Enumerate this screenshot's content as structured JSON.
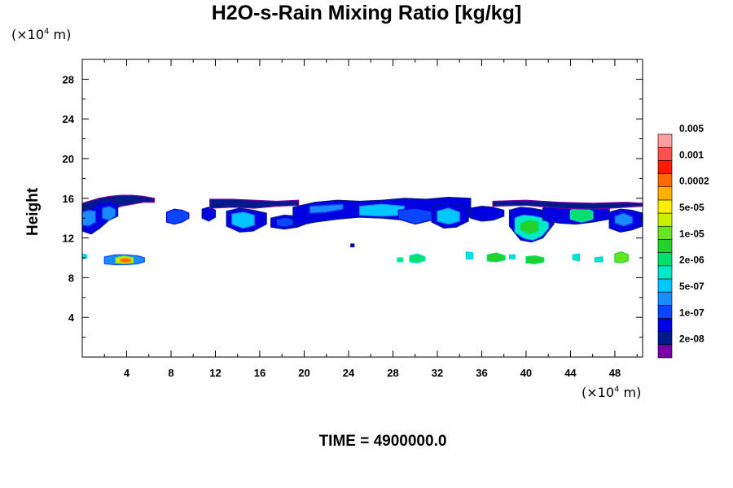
{
  "chart_data": {
    "type": "heatmap",
    "title": "H2O-s-Rain Mixing Ratio [kg/kg]",
    "ylabel": "Height",
    "xlabel": "",
    "x_unit": "(×10",
    "x_unit_exp": "4",
    "x_unit_tail": " m)",
    "y_unit": "(×10",
    "y_unit_exp": "4",
    "y_unit_tail": " m)",
    "xlim": [
      0,
      50.5
    ],
    "ylim": [
      0,
      30
    ],
    "x_ticks": [
      4,
      8,
      12,
      16,
      20,
      24,
      28,
      32,
      36,
      40,
      44,
      48
    ],
    "y_ticks": [
      4,
      8,
      12,
      16,
      20,
      24,
      28
    ],
    "x_tick_labels": [
      "4",
      "8",
      "12",
      "16",
      "20",
      "24",
      "28",
      "32",
      "36",
      "40",
      "44",
      "48"
    ],
    "y_tick_labels": [
      "4",
      "8",
      "12",
      "16",
      "20",
      "24",
      "28"
    ],
    "colorbar": {
      "colors": [
        "#7a00a8",
        "#001a8c",
        "#0000e0",
        "#0a46ff",
        "#1a8cff",
        "#00c8ff",
        "#00e8c8",
        "#00e070",
        "#22d22a",
        "#66e620",
        "#c8f000",
        "#ffee00",
        "#ffb000",
        "#ff6a00",
        "#ff1a00",
        "#ff5050",
        "#ff9e9e"
      ],
      "labels": [
        "2e-08",
        "1e-07",
        "5e-07",
        "2e-06",
        "1e-05",
        "5e-05",
        "0.0002",
        "0.001",
        "0.005"
      ]
    },
    "regions": [
      {
        "x": [
          0,
          1.5,
          2.5,
          3.5,
          4.5,
          5.5,
          6.5
        ],
        "ymin": [
          13.5,
          14.3,
          14.8,
          15.2,
          15.4,
          15.6,
          15.6
        ],
        "ymax": [
          15.5,
          16.0,
          16.2,
          16.3,
          16.3,
          16.2,
          16.0
        ],
        "level": 1
      },
      {
        "x": [
          0,
          0.8,
          1.6,
          2.4,
          3.2
        ],
        "ymin": [
          12.7,
          12.4,
          13.0,
          13.8,
          14.2
        ],
        "ymax": [
          14.8,
          15.0,
          15.6,
          15.7,
          15.4
        ],
        "level": 2
      },
      {
        "x": [
          0,
          0.6,
          1.2
        ],
        "ymin": [
          13.3,
          13.2,
          13.6
        ],
        "ymax": [
          14.6,
          14.8,
          14.7
        ],
        "level": 4
      },
      {
        "x": [
          1.8,
          2.4,
          3.0
        ],
        "ymin": [
          14.0,
          13.8,
          14.2
        ],
        "ymax": [
          15.0,
          15.2,
          14.9
        ],
        "level": 4
      },
      {
        "x": [
          7.6,
          8.3,
          9.0,
          9.6
        ],
        "ymin": [
          13.6,
          13.4,
          13.6,
          14.0
        ],
        "ymax": [
          14.6,
          14.9,
          14.8,
          14.5
        ],
        "level": 3
      },
      {
        "x": [
          10.8,
          11.4,
          12.0
        ],
        "ymin": [
          14.0,
          13.7,
          14.1
        ],
        "ymax": [
          14.9,
          15.1,
          14.8
        ],
        "level": 2
      },
      {
        "x": [
          11.5,
          13.5,
          15.5,
          17.5,
          19.5
        ],
        "ymin": [
          15.0,
          15.1,
          15.0,
          15.2,
          15.3
        ],
        "ymax": [
          15.9,
          15.9,
          15.8,
          15.7,
          15.8
        ],
        "level": 1
      },
      {
        "x": [
          13.0,
          14.2,
          15.4,
          16.6
        ],
        "ymin": [
          13.2,
          12.6,
          12.7,
          13.4
        ],
        "ymax": [
          14.7,
          15.0,
          14.8,
          14.5
        ],
        "level": 2
      },
      {
        "x": [
          13.5,
          14.5,
          15.5
        ],
        "ymin": [
          13.4,
          13.0,
          13.3
        ],
        "ymax": [
          14.4,
          14.6,
          14.3
        ],
        "level": 5
      },
      {
        "x": [
          17.0,
          18.2,
          19.4,
          20.6
        ],
        "ymin": [
          13.1,
          12.9,
          13.1,
          13.6
        ],
        "ymax": [
          14.0,
          14.3,
          14.2,
          14.0
        ],
        "level": 2
      },
      {
        "x": [
          17.5,
          18.3,
          19.1
        ],
        "ymin": [
          13.2,
          13.1,
          13.3
        ],
        "ymax": [
          13.9,
          14.1,
          13.9
        ],
        "level": 3
      },
      {
        "x": [
          19.0,
          21.0,
          23.0,
          25.0,
          27.0,
          29.0,
          31.0,
          33.0,
          35.0
        ],
        "ymin": [
          13.2,
          13.6,
          13.9,
          14.1,
          14.0,
          13.8,
          13.9,
          14.0,
          14.1
        ],
        "ymax": [
          15.1,
          15.6,
          15.8,
          15.7,
          15.8,
          16.0,
          15.9,
          16.1,
          16.0
        ],
        "level": 2
      },
      {
        "x": [
          20.5,
          22.0,
          23.5
        ],
        "ymin": [
          14.5,
          14.6,
          14.9
        ],
        "ymax": [
          15.2,
          15.3,
          15.4
        ],
        "level": 4
      },
      {
        "x": [
          25.0,
          27.0,
          29.0
        ],
        "ymin": [
          14.3,
          14.2,
          14.3
        ],
        "ymax": [
          15.2,
          15.4,
          15.2
        ],
        "level": 5
      },
      {
        "x": [
          28.5,
          30.0,
          31.5
        ],
        "ymin": [
          13.9,
          13.4,
          13.8
        ],
        "ymax": [
          14.8,
          15.0,
          14.7
        ],
        "level": 3
      },
      {
        "x": [
          31.5,
          32.6,
          33.7,
          34.8
        ],
        "ymin": [
          13.6,
          13.0,
          13.1,
          13.7
        ],
        "ymax": [
          15.1,
          15.5,
          15.4,
          14.9
        ],
        "level": 2
      },
      {
        "x": [
          32.0,
          33.0,
          34.0
        ],
        "ymin": [
          13.7,
          13.4,
          13.7
        ],
        "ymax": [
          14.7,
          15.0,
          14.6
        ],
        "level": 5
      },
      {
        "x": [
          35.0,
          36.0,
          37.0,
          38.0
        ],
        "ymin": [
          14.0,
          13.7,
          13.8,
          14.2
        ],
        "ymax": [
          15.0,
          15.2,
          15.1,
          14.8
        ],
        "level": 2
      },
      {
        "x": [
          38.5,
          39.5,
          40.5,
          41.5,
          42.5
        ],
        "ymin": [
          13.2,
          11.8,
          11.6,
          12.0,
          13.4
        ],
        "ymax": [
          14.8,
          15.1,
          15.0,
          14.8,
          14.5
        ],
        "level": 2
      },
      {
        "x": [
          39.0,
          39.8,
          40.6,
          41.4,
          42.0
        ],
        "ymin": [
          12.6,
          12.0,
          11.8,
          12.2,
          13.0
        ],
        "ymax": [
          14.0,
          14.3,
          14.2,
          14.0,
          13.5
        ],
        "level": 6
      },
      {
        "x": [
          39.5,
          40.3,
          41.1
        ],
        "ymin": [
          12.8,
          12.4,
          12.7
        ],
        "ymax": [
          13.5,
          13.8,
          13.6
        ],
        "level": 8
      },
      {
        "x": [
          41.5,
          43.0,
          44.5,
          46.0,
          47.5
        ],
        "ymin": [
          13.8,
          13.5,
          13.4,
          13.6,
          13.9
        ],
        "ymax": [
          15.0,
          15.3,
          15.4,
          15.2,
          15.0
        ],
        "level": 2
      },
      {
        "x": [
          44.0,
          45.0,
          46.0
        ],
        "ymin": [
          13.9,
          13.6,
          13.9
        ],
        "ymax": [
          14.8,
          15.1,
          14.7
        ],
        "level": 7
      },
      {
        "x": [
          47.5,
          48.5,
          49.5,
          50.5
        ],
        "ymin": [
          13.0,
          12.6,
          12.8,
          13.2
        ],
        "ymax": [
          14.6,
          14.9,
          14.8,
          14.5
        ],
        "level": 2
      },
      {
        "x": [
          48.0,
          48.8,
          49.6
        ],
        "ymin": [
          13.5,
          13.2,
          13.5
        ],
        "ymax": [
          14.2,
          14.5,
          14.1
        ],
        "level": 4
      },
      {
        "x": [
          37.0,
          40.0,
          43.0,
          46.0,
          49.0,
          50.5
        ],
        "ymin": [
          15.2,
          15.3,
          15.0,
          14.9,
          15.1,
          15.2
        ],
        "ymax": [
          15.7,
          15.8,
          15.6,
          15.5,
          15.6,
          15.5
        ],
        "level": 1
      },
      {
        "x": [
          2.0,
          3.0,
          4.0,
          5.0,
          5.6
        ],
        "ymin": [
          9.4,
          9.3,
          9.3,
          9.4,
          9.6
        ],
        "ymax": [
          10.1,
          10.3,
          10.3,
          10.2,
          10.0
        ],
        "level": 4
      },
      {
        "x": [
          3.0,
          3.8,
          4.6
        ],
        "ymin": [
          9.5,
          9.4,
          9.5
        ],
        "ymax": [
          10.0,
          10.2,
          10.0
        ],
        "level": 10
      },
      {
        "x": [
          3.4,
          3.9,
          4.4
        ],
        "ymin": [
          9.6,
          9.5,
          9.6
        ],
        "ymax": [
          9.9,
          10.0,
          9.9
        ],
        "level": 13
      },
      {
        "x": [
          0,
          0.4
        ],
        "ymin": [
          9.9,
          10.0
        ],
        "ymax": [
          10.4,
          10.3
        ],
        "level": 6
      },
      {
        "x": [
          28.4,
          28.9
        ],
        "ymin": [
          9.6,
          9.6
        ],
        "ymax": [
          10.0,
          10.0
        ],
        "level": 7
      },
      {
        "x": [
          29.5,
          30.2,
          30.9
        ],
        "ymin": [
          9.6,
          9.5,
          9.7
        ],
        "ymax": [
          10.2,
          10.4,
          10.1
        ],
        "level": 7
      },
      {
        "x": [
          34.6,
          35.2
        ],
        "ymin": [
          9.9,
          9.9
        ],
        "ymax": [
          10.6,
          10.5
        ],
        "level": 6
      },
      {
        "x": [
          36.5,
          37.3,
          38.1
        ],
        "ymin": [
          9.7,
          9.6,
          9.8
        ],
        "ymax": [
          10.3,
          10.5,
          10.2
        ],
        "level": 8
      },
      {
        "x": [
          38.5,
          39.0
        ],
        "ymin": [
          9.9,
          9.9
        ],
        "ymax": [
          10.3,
          10.3
        ],
        "level": 6
      },
      {
        "x": [
          40.0,
          40.8,
          41.6
        ],
        "ymin": [
          9.5,
          9.4,
          9.6
        ],
        "ymax": [
          10.1,
          10.2,
          10.0
        ],
        "level": 8
      },
      {
        "x": [
          44.2,
          44.8
        ],
        "ymin": [
          9.8,
          9.7
        ],
        "ymax": [
          10.3,
          10.4
        ],
        "level": 6
      },
      {
        "x": [
          46.2,
          46.9
        ],
        "ymin": [
          9.6,
          9.6
        ],
        "ymax": [
          10.0,
          10.1
        ],
        "level": 6
      },
      {
        "x": [
          48.0,
          48.6,
          49.2
        ],
        "ymin": [
          9.6,
          9.5,
          9.7
        ],
        "ymax": [
          10.4,
          10.6,
          10.3
        ],
        "level": 9
      },
      {
        "x": [
          24.2,
          24.5
        ],
        "ymin": [
          11.1,
          11.1
        ],
        "ymax": [
          11.4,
          11.4
        ],
        "level": 2
      }
    ]
  },
  "footer": {
    "time_label": "TIME = 4900000.0"
  }
}
